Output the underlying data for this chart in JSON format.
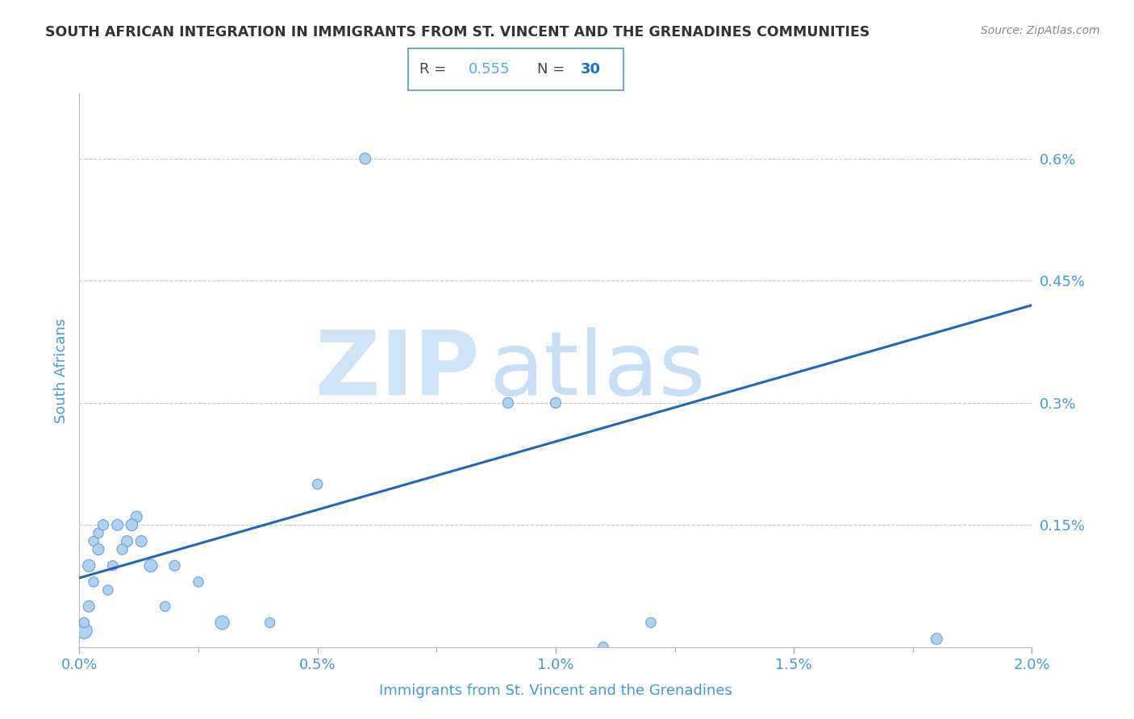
{
  "title": "SOUTH AFRICAN INTEGRATION IN IMMIGRANTS FROM ST. VINCENT AND THE GRENADINES COMMUNITIES",
  "source": "Source: ZipAtlas.com",
  "xlabel": "Immigrants from St. Vincent and the Grenadines",
  "ylabel": "South Africans",
  "R": 0.555,
  "N": 30,
  "annotation_border_color": "#5599dd",
  "r_value_color": "#4da6ff",
  "n_value_color": "#1a6ed4",
  "watermark_zip_color": "#d0e4f7",
  "watermark_atlas_color": "#c8dff5",
  "scatter_color": "#a8cef0",
  "scatter_edge_color": "#6699cc",
  "line_color": "#2266bb",
  "x_data": [
    0.0001,
    0.0002,
    0.0001,
    0.0003,
    0.0004,
    0.0002,
    0.0003,
    0.0005,
    0.0004,
    0.0006,
    0.0008,
    0.001,
    0.0007,
    0.0009,
    0.0012,
    0.0011,
    0.0013,
    0.0015,
    0.0018,
    0.002,
    0.0025,
    0.003,
    0.004,
    0.005,
    0.006,
    0.01,
    0.011,
    0.012,
    0.009,
    0.018
  ],
  "y_data": [
    0.0002,
    0.0005,
    0.0003,
    0.0013,
    0.0014,
    0.001,
    0.0008,
    0.0015,
    0.0012,
    0.0007,
    0.0015,
    0.0013,
    0.001,
    0.0012,
    0.0016,
    0.0015,
    0.0013,
    0.001,
    0.0005,
    0.001,
    0.0008,
    0.0003,
    0.0003,
    0.002,
    0.006,
    0.003,
    0.0,
    0.0003,
    0.003,
    0.0001
  ],
  "sizes": [
    200,
    100,
    80,
    80,
    80,
    120,
    80,
    90,
    100,
    80,
    100,
    100,
    80,
    90,
    100,
    110,
    100,
    130,
    80,
    90,
    80,
    150,
    80,
    80,
    100,
    90,
    80,
    80,
    90,
    100
  ],
  "xlim": [
    0,
    0.02
  ],
  "ylim": [
    0,
    0.0068
  ],
  "xticks": [
    0.0,
    0.005,
    0.01,
    0.015,
    0.02
  ],
  "xtick_labels": [
    "0.0%",
    "0.5%",
    "1.0%",
    "1.5%",
    "2.0%"
  ],
  "yticks_right": [
    0.0,
    0.0015,
    0.003,
    0.0045,
    0.006
  ],
  "ytick_labels_right": [
    "",
    "0.15%",
    "0.3%",
    "0.45%",
    "0.6%"
  ],
  "grid_color": "#cccccc",
  "background_color": "#ffffff",
  "title_color": "#333333",
  "axis_label_color": "#4499dd",
  "tick_label_color": "#4499dd"
}
